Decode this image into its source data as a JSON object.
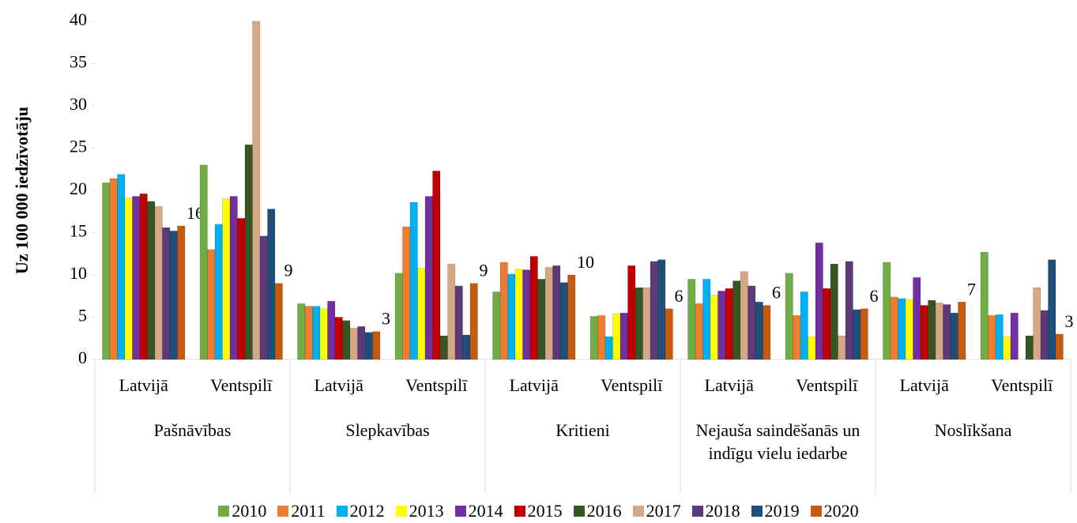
{
  "chart_data": {
    "type": "bar",
    "y_label": "Uz 100 000 iedzīvotāju",
    "categories": [
      "Latvijā",
      "Ventspilī",
      "Latvijā",
      "Ventspilī",
      "Latvijā",
      "Ventspilī",
      "Latvijā",
      "Ventspilī",
      "Latvijā",
      "Ventspilī"
    ],
    "groups": [
      "Pašnāvības",
      "Slepkavības",
      "Kritieni",
      "Nejauša saindēšanās un indīgu vielu iedarbe",
      "Noslīkšana"
    ],
    "ylim": [
      0,
      40
    ],
    "yticks": [
      0,
      5,
      10,
      15,
      20,
      25,
      30,
      35,
      40
    ],
    "series": [
      {
        "name": "2010",
        "color": "#70ad47",
        "values": [
          20.9,
          23.0,
          6.6,
          10.2,
          8.0,
          5.1,
          9.5,
          10.2,
          11.5,
          12.7
        ]
      },
      {
        "name": "2011",
        "color": "#ed7d31",
        "values": [
          21.4,
          13.0,
          6.3,
          15.7,
          11.5,
          5.2,
          6.6,
          5.2,
          7.4,
          5.2
        ]
      },
      {
        "name": "2012",
        "color": "#00b0f0",
        "values": [
          21.9,
          16.0,
          6.3,
          18.6,
          10.1,
          2.7,
          9.5,
          8.0,
          7.2,
          5.3
        ]
      },
      {
        "name": "2013",
        "color": "#ffff00",
        "values": [
          19.1,
          19.0,
          6.0,
          10.8,
          10.7,
          5.4,
          7.6,
          2.7,
          7.1,
          2.7
        ]
      },
      {
        "name": "2014",
        "color": "#7030a0",
        "values": [
          19.3,
          19.3,
          6.9,
          19.3,
          10.6,
          5.5,
          8.1,
          13.8,
          9.7,
          5.5
        ]
      },
      {
        "name": "2015",
        "color": "#c00000",
        "values": [
          19.6,
          16.7,
          5.0,
          22.3,
          12.2,
          11.1,
          8.4,
          8.4,
          6.4,
          null
        ]
      },
      {
        "name": "2016",
        "color": "#375623",
        "values": [
          18.7,
          25.4,
          4.6,
          2.8,
          9.5,
          8.5,
          9.3,
          11.3,
          7.0,
          2.8
        ]
      },
      {
        "name": "2017",
        "color": "#d6a785",
        "values": [
          18.1,
          40.0,
          3.7,
          11.3,
          10.9,
          8.5,
          10.4,
          2.8,
          6.7,
          8.5
        ]
      },
      {
        "name": "2018",
        "color": "#5c3a7a",
        "values": [
          15.6,
          14.6,
          3.9,
          8.7,
          11.1,
          11.6,
          8.7,
          11.6,
          6.5,
          5.8
        ]
      },
      {
        "name": "2019",
        "color": "#1f4e79",
        "values": [
          15.2,
          17.8,
          3.2,
          2.9,
          9.1,
          11.8,
          6.8,
          5.9,
          5.5,
          11.8
        ]
      },
      {
        "name": "2020",
        "color": "#c55a11",
        "values": [
          15.8,
          9.0,
          3.3,
          9.0,
          10.0,
          6.0,
          6.4,
          6.0,
          6.8,
          3.0
        ],
        "value_labels": [
          "16",
          "9",
          "3",
          "9",
          "10",
          "6",
          "6",
          "6",
          "7",
          "3"
        ]
      }
    ]
  }
}
